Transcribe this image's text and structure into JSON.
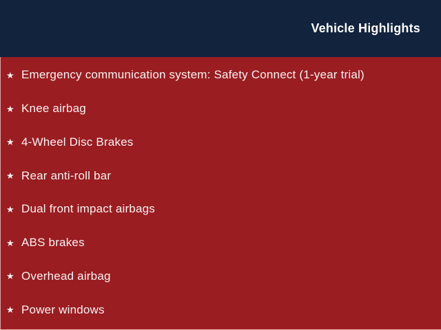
{
  "header": {
    "title": "Vehicle Highlights",
    "background_color": "#12233E",
    "text_color": "#FFFFFF"
  },
  "body": {
    "background_color": "#9A1D22",
    "text_color": "#F8F2F1",
    "bullet_icon": "star-icon",
    "bullet_glyph": "★"
  },
  "highlights": [
    {
      "label": "Emergency communication system: Safety Connect (1-year trial)"
    },
    {
      "label": "Knee airbag"
    },
    {
      "label": "4-Wheel Disc Brakes"
    },
    {
      "label": "Rear anti-roll bar"
    },
    {
      "label": "Dual front impact airbags"
    },
    {
      "label": "ABS brakes"
    },
    {
      "label": "Overhead airbag"
    },
    {
      "label": "Power windows"
    }
  ]
}
